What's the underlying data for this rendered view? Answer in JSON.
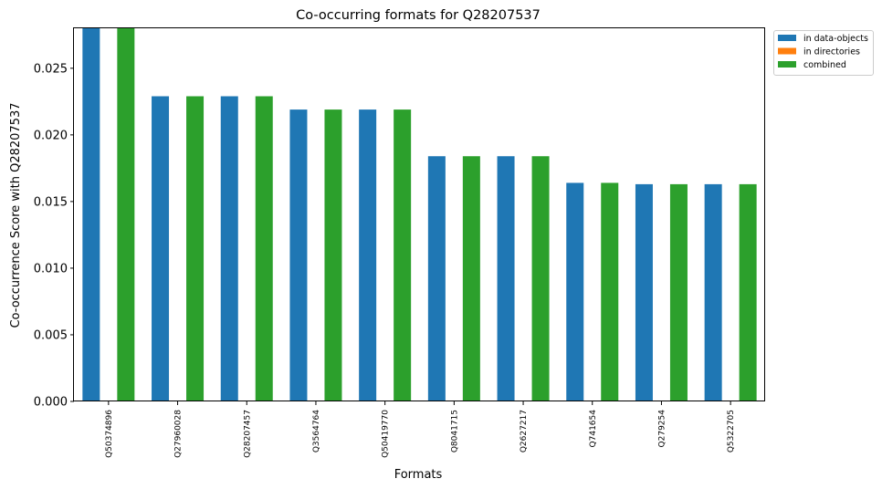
{
  "chart_data": {
    "type": "bar",
    "title": "Co-occurring formats for Q28207537",
    "xlabel": "Formats",
    "ylabel": "Co-occurrence Score with Q28207537",
    "categories": [
      "Q50374896",
      "Q27960028",
      "Q28207457",
      "Q3564764",
      "Q50419770",
      "Q8041715",
      "Q2627217",
      "Q741654",
      "Q279254",
      "Q5322705"
    ],
    "series": [
      {
        "name": "in data-objects",
        "color": "#1f77b4",
        "values": [
          0.028,
          0.0229,
          0.0229,
          0.0219,
          0.0219,
          0.0184,
          0.0184,
          0.0164,
          0.0163,
          0.0163
        ]
      },
      {
        "name": "in directories",
        "color": "#ff7f0e",
        "values": [
          0,
          0,
          0,
          0,
          0,
          0,
          0,
          0,
          0,
          0
        ]
      },
      {
        "name": "combined",
        "color": "#2ca02c",
        "values": [
          0.028,
          0.0229,
          0.0229,
          0.0219,
          0.0219,
          0.0184,
          0.0184,
          0.0164,
          0.0163,
          0.0163
        ]
      }
    ],
    "yticks": [
      "0.000",
      "0.005",
      "0.010",
      "0.015",
      "0.020",
      "0.025"
    ],
    "ylim": [
      0,
      0.028
    ],
    "grid": false,
    "legend_position": "outside top-right"
  }
}
